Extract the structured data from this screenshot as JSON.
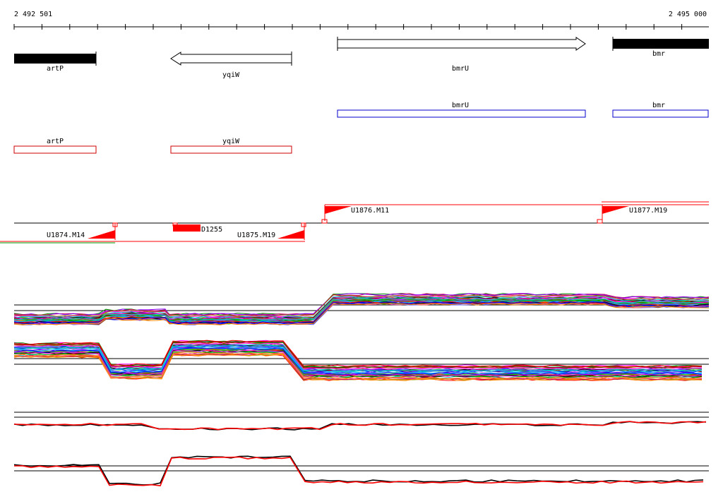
{
  "ruler": {
    "start_label": "2 492 501",
    "end_label": "2 495 000"
  },
  "genes": [
    {
      "label": "artP"
    },
    {
      "label": "yqiW"
    },
    {
      "label": "bmrU"
    },
    {
      "label": "bmr"
    }
  ],
  "annotations_blue": [
    {
      "label": "bmrU"
    },
    {
      "label": "bmr"
    }
  ],
  "annotations_red": [
    {
      "label": "artP"
    },
    {
      "label": "yqiW"
    }
  ],
  "features": {
    "upper": [
      {
        "label": "U1876.M11"
      },
      {
        "label": "U1877.M19"
      }
    ],
    "lower": [
      {
        "label": "U1874.M14"
      },
      {
        "label": "D1255"
      },
      {
        "label": "U1875.M19"
      }
    ]
  },
  "colors": {
    "gene_fill": "#000000",
    "blue_box": "#0000cc",
    "red_box": "#cc0000",
    "feature": "#ff0000"
  }
}
